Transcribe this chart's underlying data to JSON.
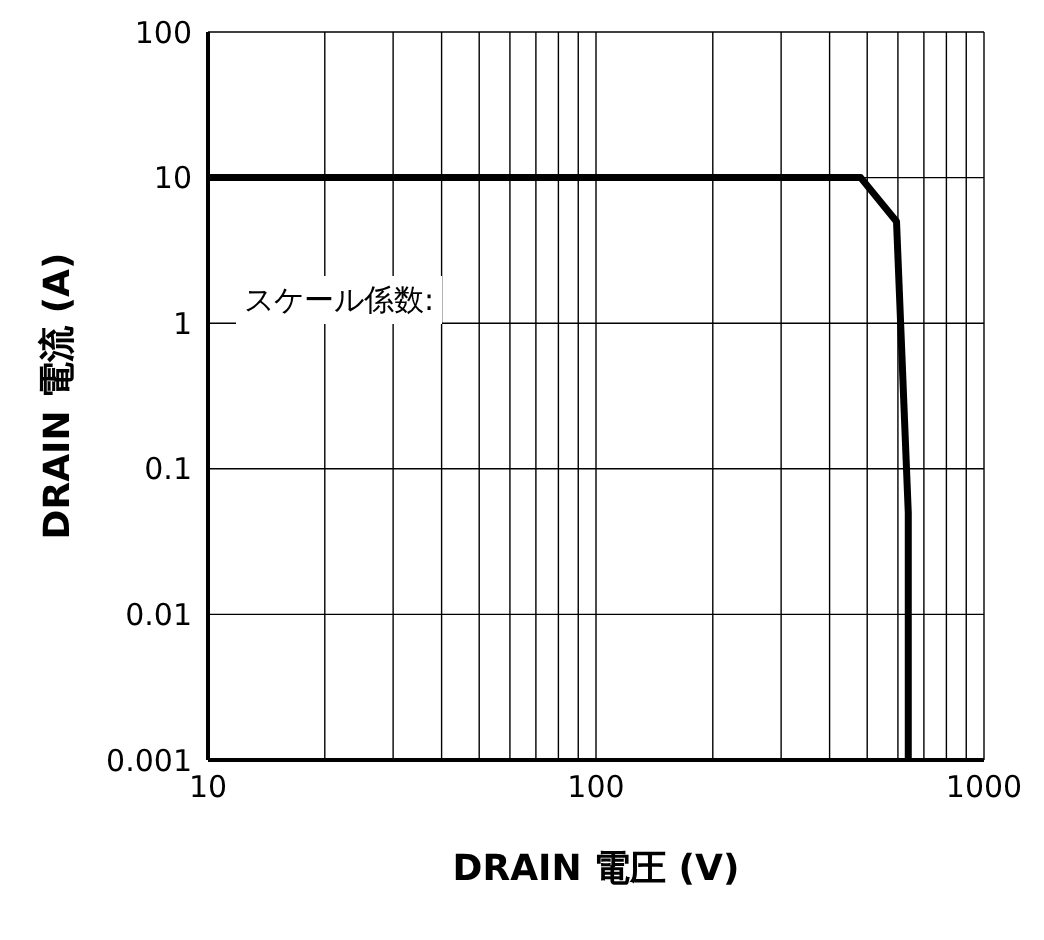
{
  "chart_data": {
    "type": "line",
    "xlabel": "DRAIN 電圧 (V)",
    "ylabel": "DRAIN 電流 (A)",
    "log": "xy",
    "x": [
      10,
      481,
      595,
      638,
      638
    ],
    "series": [
      {
        "color": "#000000",
        "values": [
          10,
          10,
          5,
          0.05,
          0.001
        ]
      }
    ],
    "xlim": [
      10,
      1000
    ],
    "ylim": [
      0.001,
      100
    ],
    "xticks": [
      10,
      {
        "value": 20,
        "label": null
      },
      {
        "value": 30,
        "label": null
      },
      {
        "value": 40,
        "label": null
      },
      {
        "value": 50,
        "label": null
      },
      {
        "value": 60,
        "label": null
      },
      {
        "value": 70,
        "label": null
      },
      {
        "value": 80,
        "label": null
      },
      {
        "value": 90,
        "label": null
      },
      100,
      {
        "value": 200,
        "label": null
      },
      {
        "value": 300,
        "label": null
      },
      {
        "value": 400,
        "label": null
      },
      {
        "value": 500,
        "label": null
      },
      {
        "value": 600,
        "label": null
      },
      {
        "value": 700,
        "label": null
      },
      {
        "value": 800,
        "label": null
      },
      {
        "value": 900,
        "label": null
      },
      1000
    ],
    "yticks": [
      0.001,
      0.01,
      0.1,
      1,
      10,
      100
    ],
    "grid": true,
    "marker": "none",
    "line_style": "solid",
    "annotations": [
      "スケール係数:"
    ]
  }
}
